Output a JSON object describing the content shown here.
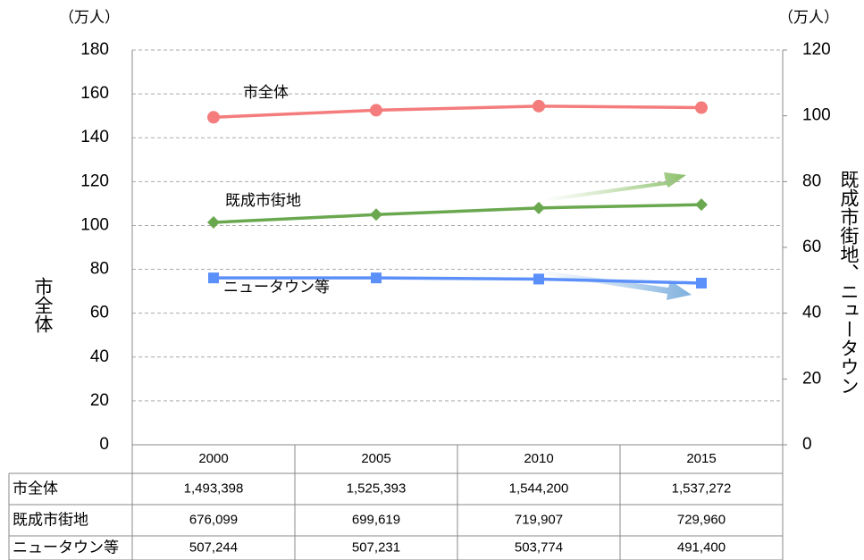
{
  "chart_data": {
    "type": "line",
    "y_unit": "（万人）",
    "y2_unit": "（万人）",
    "y_title": "市全体",
    "y2_title": "既成市街地、ニュータウン",
    "categories": [
      "2000",
      "2005",
      "2010",
      "2015"
    ],
    "series": [
      {
        "name": "市全体",
        "color": "#f47c7c",
        "marker": "circle",
        "values": [
          149.3398,
          152.5393,
          154.42,
          153.7272
        ],
        "value_labels": [
          "1,493,398",
          "1,525,393",
          "1,544,200",
          "1,537,272"
        ]
      },
      {
        "name": "既成市街地",
        "color": "#6aa84f",
        "marker": "diamond",
        "axis": "y2",
        "values": [
          67.6099,
          69.9619,
          71.9907,
          72.996
        ],
        "value_labels": [
          "676,099",
          "699,619",
          "719,907",
          "729,960"
        ]
      },
      {
        "name": "ニュータウン等",
        "color": "#5b8ff9",
        "marker": "square",
        "axis": "y2",
        "values": [
          50.7244,
          50.7231,
          50.3774,
          49.14
        ],
        "value_labels": [
          "507,244",
          "507,231",
          "503,774",
          "491,400"
        ]
      }
    ],
    "ylim": [
      0,
      180
    ],
    "yticks": [
      0,
      20,
      40,
      60,
      80,
      100,
      120,
      140,
      160,
      180
    ],
    "y2lim": [
      0,
      120
    ],
    "y2ticks": [
      0,
      20,
      40,
      60,
      80,
      100,
      120
    ],
    "grid": true
  }
}
